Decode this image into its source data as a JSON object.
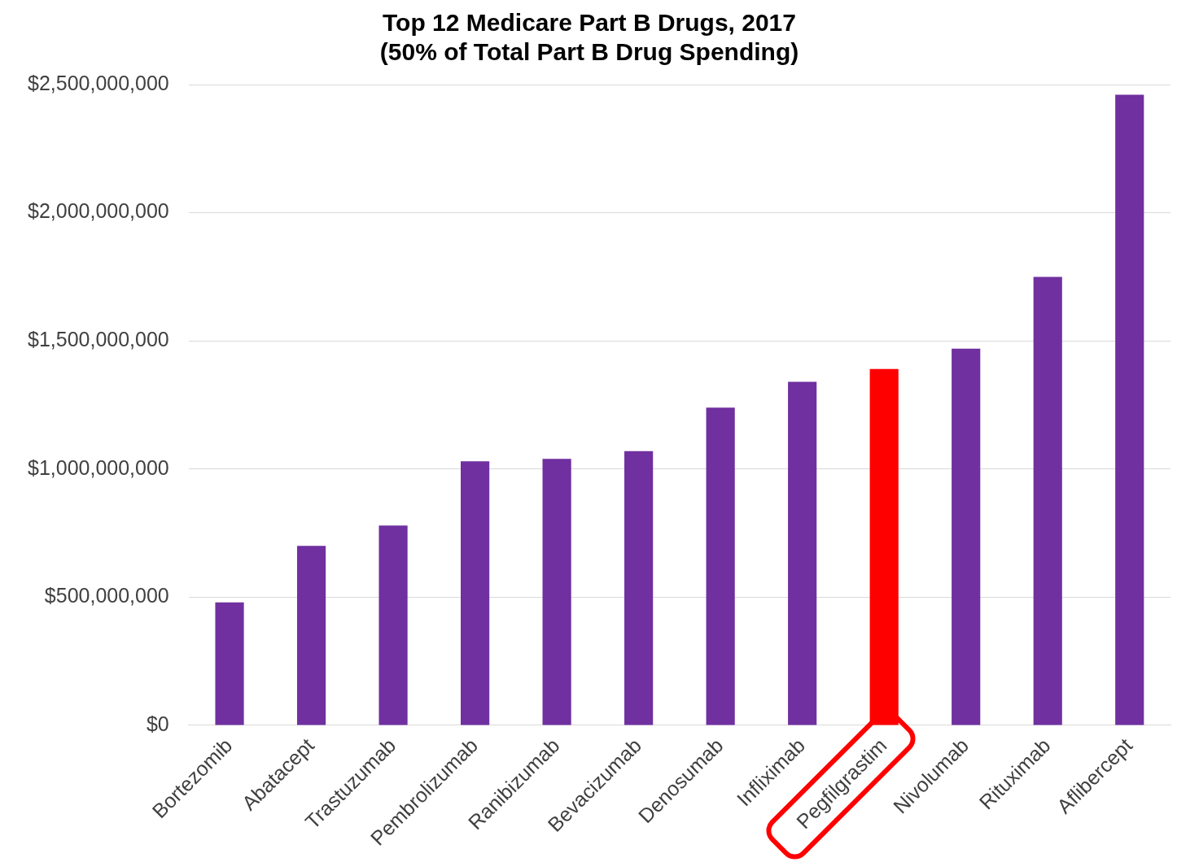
{
  "chart_data": {
    "type": "bar",
    "title": [
      "Top 12 Medicare Part B Drugs, 2017",
      "(50% of Total Part B Drug Spending)"
    ],
    "categories": [
      "Bortezomib",
      "Abatacept",
      "Trastuzumab",
      "Pembrolizumab",
      "Ranibizumab",
      "Bevacizumab",
      "Denosumab",
      "Infliximab",
      "Pegfilgrastim",
      "Nivolumab",
      "Rituximab",
      "Aflibercept"
    ],
    "values": [
      480000000,
      700000000,
      780000000,
      1030000000,
      1040000000,
      1070000000,
      1240000000,
      1340000000,
      1390000000,
      1470000000,
      1750000000,
      2460000000
    ],
    "colors": [
      "#7030a0",
      "#7030a0",
      "#7030a0",
      "#7030a0",
      "#7030a0",
      "#7030a0",
      "#7030a0",
      "#7030a0",
      "#ff0000",
      "#7030a0",
      "#7030a0",
      "#7030a0"
    ],
    "ylim": [
      0,
      2500000000
    ],
    "yticks": [
      {
        "value": 0,
        "label": "$0"
      },
      {
        "value": 500000000,
        "label": "$500,000,000"
      },
      {
        "value": 1000000000,
        "label": "$1,000,000,000"
      },
      {
        "value": 1500000000,
        "label": "$1,500,000,000"
      },
      {
        "value": 2000000000,
        "label": "$2,000,000,000"
      },
      {
        "value": 2500000000,
        "label": "$2,500,000,000"
      }
    ],
    "grid": "y",
    "legend": false
  }
}
